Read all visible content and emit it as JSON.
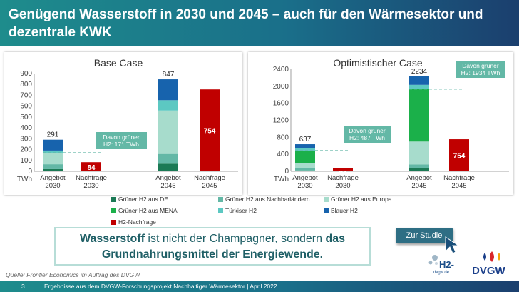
{
  "slide": {
    "title": "Genügend Wasserstoff in 2030 und 2045 – auch für den Wärmesektor und dezentrale KWK",
    "quote": {
      "part1_bold": "Wasserstoff",
      "part1_rest": " ist nicht der Champagner, sondern ",
      "part2_bold_a": "das",
      "line2_bold": "Grundnahrungsmittel der Energiewende."
    },
    "study_button": "Zur Studie",
    "source": "Quelle: Frontier Economics im Auftrag des DVGW",
    "page_number": "3",
    "footer_text": "Ergebnisse aus dem DVGW-Forschungsprojekt Nachhaltiger Wärmesektor | April 2022",
    "logo_h2": "H2-dvgw.de",
    "logo_dvgw": "DVGW"
  },
  "colors": {
    "gruen_de": "#1b7a55",
    "gruen_nachbar": "#63b8a6",
    "gruen_europa": "#a7dccc",
    "gruen_mena": "#1bb04a",
    "tuerkis": "#5cc8c2",
    "blau": "#1763ad",
    "nachfrage": "#c00000"
  },
  "legend": [
    {
      "label": "Grüner H2 aus DE",
      "color": "#1b7a55"
    },
    {
      "label": "Grüner H2 aus Nachbarländern",
      "color": "#63b8a6"
    },
    {
      "label": "Grüner H2 aus Europa",
      "color": "#a7dccc"
    },
    {
      "label": "Grüner H2 aus MENA",
      "color": "#1bb04a"
    },
    {
      "label": "Türkiser H2",
      "color": "#5cc8c2"
    },
    {
      "label": "Blauer H2",
      "color": "#1763ad"
    },
    {
      "label": "H2-Nachfrage",
      "color": "#c00000"
    }
  ],
  "chart_data": [
    {
      "type": "bar",
      "stacked": true,
      "title": "Base Case",
      "unit": "TWh",
      "ylim": [
        0,
        900
      ],
      "yticks": [
        0,
        100,
        200,
        300,
        400,
        500,
        600,
        700,
        800,
        900
      ],
      "categories": [
        "Angebot 2030",
        "Nachfrage 2030",
        "Angebot 2045",
        "Nachfrage 2045"
      ],
      "category_lines": [
        [
          "Angebot",
          "2030"
        ],
        [
          "Nachfrage",
          "2030"
        ],
        [
          "Angebot",
          "2045"
        ],
        [
          "Nachfrage",
          "2045"
        ]
      ],
      "series": [
        {
          "name": "Grüner H2 aus DE",
          "values": [
            20,
            0,
            70,
            0
          ]
        },
        {
          "name": "Grüner H2 aus Nachbarländern",
          "values": [
            45,
            0,
            90,
            0
          ]
        },
        {
          "name": "Grüner H2 aus Europa",
          "values": [
            106,
            0,
            400,
            0
          ]
        },
        {
          "name": "Grüner H2 aus MENA",
          "values": [
            0,
            0,
            0,
            0
          ]
        },
        {
          "name": "Türkiser H2",
          "values": [
            20,
            0,
            95,
            0
          ]
        },
        {
          "name": "Blauer H2",
          "values": [
            100,
            0,
            192,
            0
          ]
        },
        {
          "name": "H2-Nachfrage",
          "values": [
            0,
            84,
            0,
            754
          ]
        }
      ],
      "totals": [
        "291",
        "84",
        "847",
        "754"
      ],
      "annotation": {
        "line1": "Davon grüner",
        "line2": "H2: 171 TWh",
        "value": 171
      }
    },
    {
      "type": "bar",
      "stacked": true,
      "title": "Optimistischer Case",
      "unit": "TWh",
      "ylim": [
        0,
        2400
      ],
      "yticks": [
        0,
        400,
        800,
        1200,
        1600,
        2000,
        2400
      ],
      "categories": [
        "Angebot 2030",
        "Nachfrage 2030",
        "Angebot 2045",
        "Nachfrage 2045"
      ],
      "category_lines": [
        [
          "Angebot",
          "2030"
        ],
        [
          "Nachfrage",
          "2030"
        ],
        [
          "Angebot",
          "2045"
        ],
        [
          "Nachfrage",
          "2045"
        ]
      ],
      "series": [
        {
          "name": "Grüner H2 aus DE",
          "values": [
            20,
            0,
            70,
            0
          ]
        },
        {
          "name": "Grüner H2 aus Nachbarländern",
          "values": [
            50,
            0,
            90,
            0
          ]
        },
        {
          "name": "Grüner H2 aus Europa",
          "values": [
            117,
            0,
            540,
            0
          ]
        },
        {
          "name": "Grüner H2 aus MENA",
          "values": [
            300,
            0,
            1234,
            0
          ]
        },
        {
          "name": "Türkiser H2",
          "values": [
            50,
            0,
            100,
            0
          ]
        },
        {
          "name": "Blauer H2",
          "values": [
            100,
            0,
            200,
            0
          ]
        },
        {
          "name": "H2-Nachfrage",
          "values": [
            0,
            84,
            0,
            754
          ]
        }
      ],
      "totals": [
        "637",
        "84",
        "2234",
        "754"
      ],
      "annotation": {
        "line1": "Davon grüner",
        "line2": "H2: 487 TWh",
        "value": 487
      },
      "annotation_2045": {
        "line1": "Davon grüner",
        "line2": "H2: 1934 TWh",
        "value": 1934
      }
    }
  ]
}
